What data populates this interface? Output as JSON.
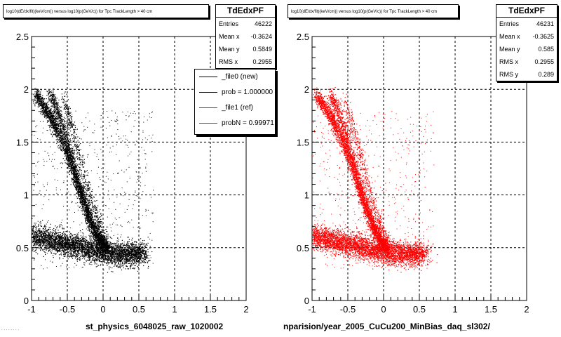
{
  "chart_data": [
    {
      "type": "scatter",
      "title": "log10(dE/dx/fit)(keV/cm)) versus log10(p(GeV/c)) for Tpc TrackLength > 40 cm",
      "xlim": [
        -1,
        2
      ],
      "ylim": [
        0,
        2.5
      ],
      "x_ticks": [
        "-1",
        "-0.5",
        "0",
        "0.5",
        "1",
        "1.5",
        "2"
      ],
      "y_ticks": [
        "0",
        "0.5",
        "1",
        "1.5",
        "2",
        "2.5"
      ],
      "grid": true,
      "marker_color": "#000000",
      "stats": {
        "name": "TdEdxPF",
        "entries": "46222",
        "mean_x": "-0.3624",
        "mean_y": "0.5849",
        "rms_x": "0.2955"
      },
      "legend": {
        "placement": "top-right",
        "entries": [
          {
            "label": "_file0 (new)",
            "color": "#000000"
          },
          {
            "label": "prob = 1.000000",
            "color": "#000000"
          },
          {
            "label": "_file1 (ref)",
            "color": "#ff0000"
          },
          {
            "label": "probN = 0.99971",
            "color": "#ff0000"
          }
        ]
      },
      "file_label": "st_physics_6048025_raw_1020002",
      "bands": [
        {
          "x": [
            -0.95,
            -0.85,
            -0.75,
            -0.65,
            -0.55,
            -0.45,
            -0.35,
            -0.25,
            -0.15,
            -0.05,
            0.05
          ],
          "y": [
            1.95,
            1.86,
            1.75,
            1.63,
            1.47,
            1.29,
            1.08,
            0.88,
            0.7,
            0.57,
            0.5
          ],
          "density": "high"
        },
        {
          "x": [
            -0.75,
            -0.65,
            -0.55,
            -0.45,
            -0.35,
            -0.25,
            -0.15,
            -0.05,
            0.05
          ],
          "y": [
            1.96,
            1.82,
            1.62,
            1.38,
            1.12,
            0.9,
            0.72,
            0.58,
            0.5
          ],
          "density": "medium"
        },
        {
          "x": [
            -0.55,
            -0.45,
            -0.35,
            -0.25,
            -0.15,
            -0.05,
            0.05
          ],
          "y": [
            1.92,
            1.68,
            1.42,
            1.16,
            0.92,
            0.72,
            0.56
          ],
          "density": "low"
        },
        {
          "x": [
            -1.0,
            -0.8,
            -0.6,
            -0.4,
            -0.2,
            0.0,
            0.2,
            0.4,
            0.55
          ],
          "y": [
            0.62,
            0.58,
            0.55,
            0.52,
            0.49,
            0.46,
            0.44,
            0.44,
            0.45
          ],
          "density": "very-high"
        }
      ]
    },
    {
      "type": "scatter",
      "title": "log10(dE/dx/fit)(keV/cm)) versus log10(p(GeV/c)) for Tpc TrackLength > 40 cm",
      "xlim": [
        -1,
        2
      ],
      "ylim": [
        0,
        2.5
      ],
      "x_ticks": [
        "-1",
        "-0.5",
        "0",
        "0.5",
        "1",
        "1.5",
        "2"
      ],
      "y_ticks": [
        "0",
        "0.5",
        "1",
        "1.5",
        "2",
        "2.5"
      ],
      "grid": true,
      "marker_color": "#ff0000",
      "stats": {
        "name": "TdEdxPF",
        "entries": "46231",
        "mean_x": "-0.3625",
        "mean_y": "0.585",
        "rms_x": "0.2955",
        "rms_y": "0.289"
      },
      "file_label": "nparision/year_2005_CuCu200_MinBias_daq_sl302/",
      "bands": [
        {
          "x": [
            -0.95,
            -0.85,
            -0.75,
            -0.65,
            -0.55,
            -0.45,
            -0.35,
            -0.25,
            -0.15,
            -0.05,
            0.05
          ],
          "y": [
            1.95,
            1.86,
            1.75,
            1.63,
            1.47,
            1.29,
            1.08,
            0.88,
            0.7,
            0.57,
            0.5
          ],
          "density": "high"
        },
        {
          "x": [
            -0.75,
            -0.65,
            -0.55,
            -0.45,
            -0.35,
            -0.25,
            -0.15,
            -0.05,
            0.05
          ],
          "y": [
            1.96,
            1.82,
            1.62,
            1.38,
            1.12,
            0.9,
            0.72,
            0.58,
            0.5
          ],
          "density": "medium"
        },
        {
          "x": [
            -0.55,
            -0.45,
            -0.35,
            -0.25,
            -0.15,
            -0.05,
            0.05
          ],
          "y": [
            1.92,
            1.68,
            1.42,
            1.16,
            0.92,
            0.72,
            0.56
          ],
          "density": "low"
        },
        {
          "x": [
            -1.0,
            -0.8,
            -0.6,
            -0.4,
            -0.2,
            0.0,
            0.2,
            0.4,
            0.55
          ],
          "y": [
            0.62,
            0.58,
            0.55,
            0.52,
            0.49,
            0.46,
            0.44,
            0.44,
            0.45
          ],
          "density": "very-high"
        }
      ]
    }
  ],
  "labels": {
    "entries": "Entries",
    "mean_x": "Mean x",
    "mean_y": "Mean y",
    "rms_x": "RMS x",
    "rms_y": "RMS y"
  }
}
